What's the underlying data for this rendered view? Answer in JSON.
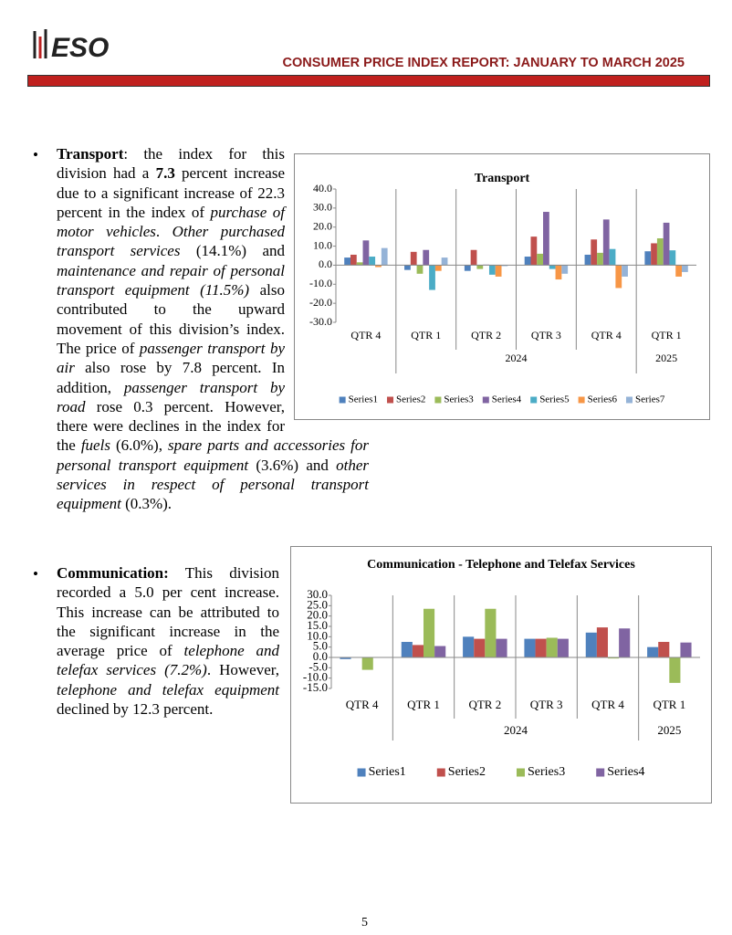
{
  "header": {
    "logo": "ESO",
    "title": "CONSUMER PRICE INDEX REPORT: JANUARY TO MARCH 2025"
  },
  "sections": [
    {
      "runs": [
        {
          "text": "Transport",
          "style": "bold"
        },
        {
          "text": ": the index for this division had a "
        },
        {
          "text": "7.3",
          "style": "bold"
        },
        {
          "text": " percent increase due to a significant increase of 22.3 percent in the index of "
        },
        {
          "text": "purchase of motor vehicles",
          "style": "italic"
        },
        {
          "text": ". "
        },
        {
          "text": "Other purchased transport services",
          "style": "italic"
        },
        {
          "text": " (14.1%) and "
        },
        {
          "text": "maintenance and repair of personal transport equipment (11.5%)",
          "style": "italic"
        },
        {
          "text": " also contributed to the upward movement of this division’s index. The price of "
        },
        {
          "text": "passenger transport by air",
          "style": "italic"
        },
        {
          "text": " also rose by 7.8 percent. In addition, "
        },
        {
          "text": "passenger transport by road",
          "style": "italic"
        },
        {
          "text": " rose 0.3 percent. However, there were declines in the index for the "
        },
        {
          "text": "fuels",
          "style": "italic"
        },
        {
          "text": " (6.0%), "
        },
        {
          "text": "spare parts and accessories for personal transport equipment",
          "style": "italic"
        },
        {
          "text": " (3.6%) and "
        },
        {
          "text": "other services in respect of personal transport equipment",
          "style": "italic"
        },
        {
          "text": " (0.3%)."
        }
      ]
    },
    {
      "runs": [
        {
          "text": "Communication:",
          "style": "bold"
        },
        {
          "text": " This division recorded a 5.0 per cent increase. This increase can be attributed to the significant increase in the average price of "
        },
        {
          "text": "telephone and telefax services (7.2%)",
          "style": "italic"
        },
        {
          "text": ". However, "
        },
        {
          "text": "telephone and telefax equipment",
          "style": "italic"
        },
        {
          "text": " declined by 12.3 percent."
        }
      ]
    }
  ],
  "chart_data": [
    {
      "type": "bar",
      "title": "Transport",
      "categories": [
        "QTR 4",
        "QTR 1",
        "QTR 2",
        "QTR 3",
        "QTR 4",
        "QTR 1"
      ],
      "groups": [
        {
          "label": "2024",
          "first": 1,
          "last": 4
        },
        {
          "label": "2025",
          "first": 5,
          "last": 5
        }
      ],
      "series": [
        {
          "name": "Series1",
          "color": "#4f81bd",
          "values": [
            4,
            -2.5,
            -3,
            4.5,
            5.5,
            7.3
          ]
        },
        {
          "name": "Series2",
          "color": "#c0504d",
          "values": [
            5.5,
            7,
            8,
            15,
            13.5,
            11.5
          ]
        },
        {
          "name": "Series3",
          "color": "#9bbb59",
          "values": [
            1.5,
            -4.5,
            -2,
            6,
            6.5,
            14.1
          ]
        },
        {
          "name": "Series4",
          "color": "#8064a2",
          "values": [
            13,
            8,
            0.3,
            28,
            24,
            22.3
          ]
        },
        {
          "name": "Series5",
          "color": "#4bacc6",
          "values": [
            4.5,
            -13,
            -5,
            -2,
            8.5,
            7.8
          ]
        },
        {
          "name": "Series6",
          "color": "#f79646",
          "values": [
            -1,
            -3,
            -6,
            -7.5,
            -12,
            -6
          ]
        },
        {
          "name": "Series7",
          "color": "#95b3d7",
          "values": [
            9,
            4,
            -0.5,
            -4.5,
            -6,
            -3.6
          ]
        }
      ],
      "ylim": [
        -30,
        40
      ],
      "yticks": [
        {
          "value": 40,
          "label": "40.0"
        },
        {
          "value": 30,
          "label": "30.0"
        },
        {
          "value": 20,
          "label": "20.0"
        },
        {
          "value": 10,
          "label": "10.0"
        },
        {
          "value": 0,
          "label": "0.0"
        },
        {
          "value": -10,
          "label": "-10.0"
        },
        {
          "value": -20,
          "label": "-20.0"
        },
        {
          "value": -30,
          "label": "-30.0"
        }
      ],
      "legend": "bottom"
    },
    {
      "type": "bar",
      "title": "Communication - Telephone and Telefax Services",
      "categories": [
        "QTR 4",
        "QTR 1",
        "QTR 2",
        "QTR 3",
        "QTR 4",
        "QTR 1"
      ],
      "groups": [
        {
          "label": "2024",
          "first": 1,
          "last": 4
        },
        {
          "label": "2025",
          "first": 5,
          "last": 5
        }
      ],
      "series": [
        {
          "name": "Series1",
          "color": "#4f81bd",
          "values": [
            -0.8,
            7.5,
            10,
            9,
            12,
            5
          ]
        },
        {
          "name": "Series2",
          "color": "#c0504d",
          "values": [
            0,
            6,
            9,
            9,
            14.5,
            7.5
          ]
        },
        {
          "name": "Series3",
          "color": "#9bbb59",
          "values": [
            -6,
            23.5,
            23.5,
            9.5,
            -0.5,
            -12.3
          ]
        },
        {
          "name": "Series4",
          "color": "#8064a2",
          "values": [
            0,
            5.5,
            9,
            9,
            14,
            7.2
          ]
        }
      ],
      "ylim": [
        -15,
        30
      ],
      "yticks": [
        {
          "value": 30,
          "label": "30.0"
        },
        {
          "value": 25,
          "label": "25.0"
        },
        {
          "value": 20,
          "label": "20.0"
        },
        {
          "value": 15,
          "label": "15.0"
        },
        {
          "value": 10,
          "label": "10.0"
        },
        {
          "value": 5,
          "label": "5.0"
        },
        {
          "value": 0,
          "label": "0.0"
        },
        {
          "value": -5,
          "label": "-5.0"
        },
        {
          "value": -10,
          "label": "-10.0"
        },
        {
          "value": -15,
          "label": "-15.0"
        }
      ],
      "legend": "bottom"
    }
  ],
  "page_number": "5"
}
